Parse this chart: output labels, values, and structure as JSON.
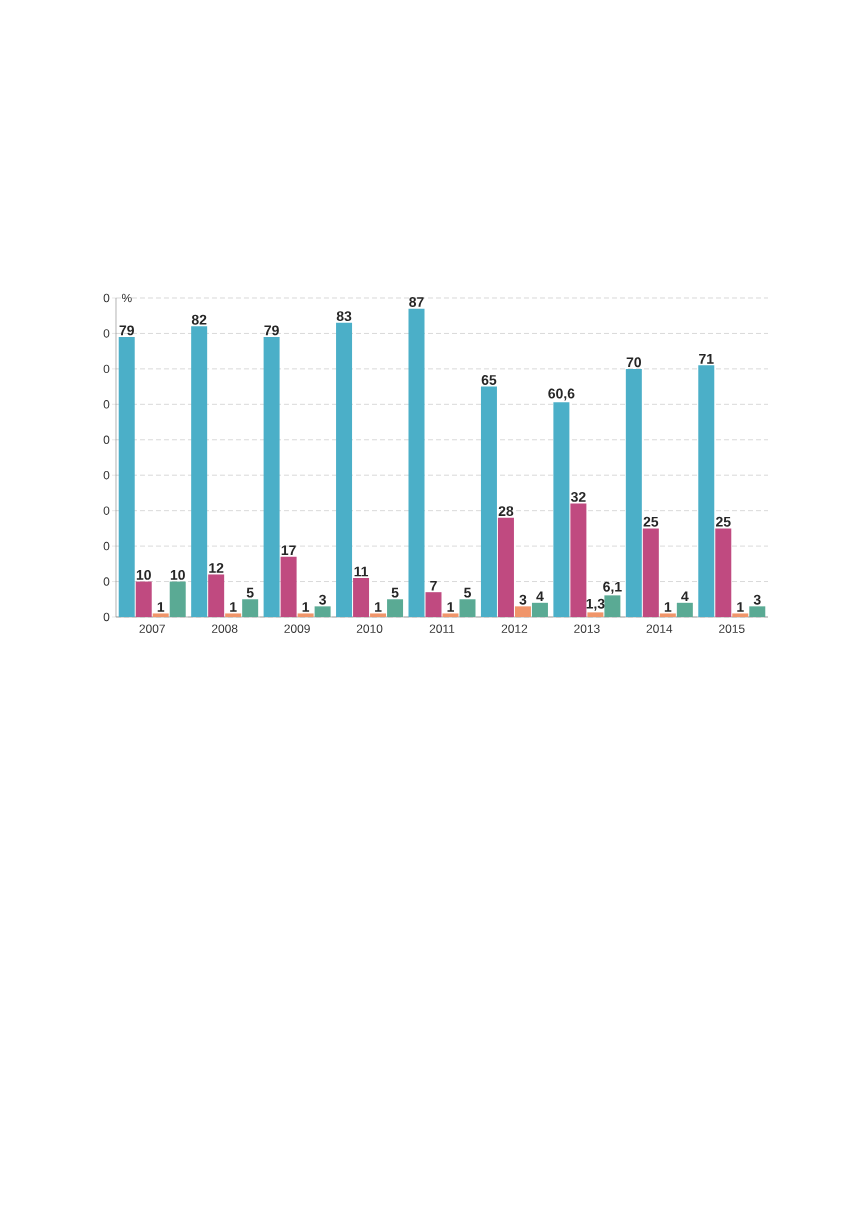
{
  "chart_data": {
    "type": "bar",
    "ylabel": "%",
    "categories": [
      "2007",
      "2008",
      "2009",
      "2010",
      "2011",
      "2012",
      "2013",
      "2014",
      "2015"
    ],
    "series": [
      {
        "color": "#4bafc8",
        "values": [
          79,
          82,
          79,
          83,
          87,
          65,
          60.6,
          70,
          71
        ],
        "value_labels": [
          "79",
          "82",
          "79",
          "83",
          "87",
          "65",
          "60,6",
          "70",
          "71"
        ]
      },
      {
        "color": "#c04a80",
        "values": [
          10,
          12,
          17,
          11,
          7,
          28,
          32,
          25,
          25
        ],
        "value_labels": [
          "10",
          "12",
          "17",
          "11",
          "7",
          "28",
          "32",
          "25",
          "25"
        ]
      },
      {
        "color": "#f0956a",
        "values": [
          1,
          1,
          1,
          1,
          1,
          3,
          1.3,
          1,
          1
        ],
        "value_labels": [
          "1",
          "1",
          "1",
          "1",
          "1",
          "3",
          "1,3",
          "1",
          "1"
        ]
      },
      {
        "color": "#5aaa94",
        "values": [
          10,
          5,
          3,
          5,
          5,
          4,
          6.1,
          4,
          3
        ],
        "value_labels": [
          "10",
          "5",
          "3",
          "5",
          "5",
          "4",
          "6,1",
          "4",
          "3"
        ]
      }
    ],
    "ylim": [
      0,
      90
    ],
    "yticks": [
      {
        "value": 0,
        "label": null
      },
      {
        "value": 10,
        "label": null
      },
      {
        "value": 20,
        "label": null
      },
      {
        "value": 30,
        "label": null
      },
      {
        "value": 40,
        "label": null
      },
      {
        "value": 50,
        "label": null
      },
      {
        "value": 60,
        "label": null
      },
      {
        "value": 70,
        "label": null
      },
      {
        "value": 80,
        "label": null
      },
      {
        "value": 90,
        "label": null
      }
    ],
    "annotations": [
      "0",
      "0",
      "0",
      "0",
      "0",
      "0",
      "0",
      "0",
      "0",
      "0"
    ],
    "grid": "y"
  }
}
